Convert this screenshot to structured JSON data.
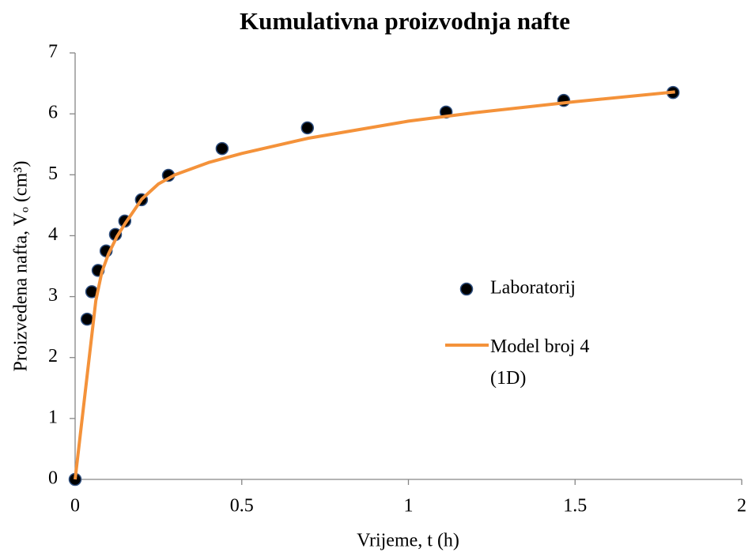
{
  "chart_data": {
    "type": "scatter",
    "title": "Kumulativna proizvodnja nafte",
    "xlabel": "Vrijeme, t (h)",
    "ylabel": "Proizvedena nafta, Vₒ (cm³)",
    "xlim": [
      0,
      2
    ],
    "xticks": [
      0,
      0.5,
      1,
      1.5,
      2
    ],
    "ylim": [
      0,
      7
    ],
    "yticks": [
      0,
      1,
      2,
      3,
      4,
      5,
      6,
      7
    ],
    "grid": false,
    "legend": "right",
    "series": [
      {
        "name": "Laboratorij",
        "type": "scatter",
        "color": "#000000",
        "edgecolor": "#2f4f7f",
        "x": [
          0,
          0.036,
          0.05,
          0.069,
          0.093,
          0.121,
          0.149,
          0.199,
          0.28,
          0.441,
          0.697,
          1.113,
          1.466,
          1.794
        ],
        "values": [
          0,
          2.63,
          3.08,
          3.43,
          3.75,
          4.02,
          4.24,
          4.59,
          4.99,
          5.43,
          5.77,
          6.03,
          6.22,
          6.35
        ]
      },
      {
        "name": "Model broj 4 (1D)",
        "type": "line",
        "color": "#f4923a",
        "x": [
          0,
          0.062,
          0.08,
          0.1,
          0.125,
          0.15,
          0.2,
          0.25,
          0.3,
          0.4,
          0.5,
          0.7,
          1.0,
          1.2,
          1.5,
          1.8
        ],
        "values": [
          0,
          2.93,
          3.4,
          3.7,
          3.98,
          4.2,
          4.6,
          4.85,
          5.0,
          5.2,
          5.35,
          5.6,
          5.88,
          6.02,
          6.2,
          6.36
        ]
      }
    ]
  }
}
